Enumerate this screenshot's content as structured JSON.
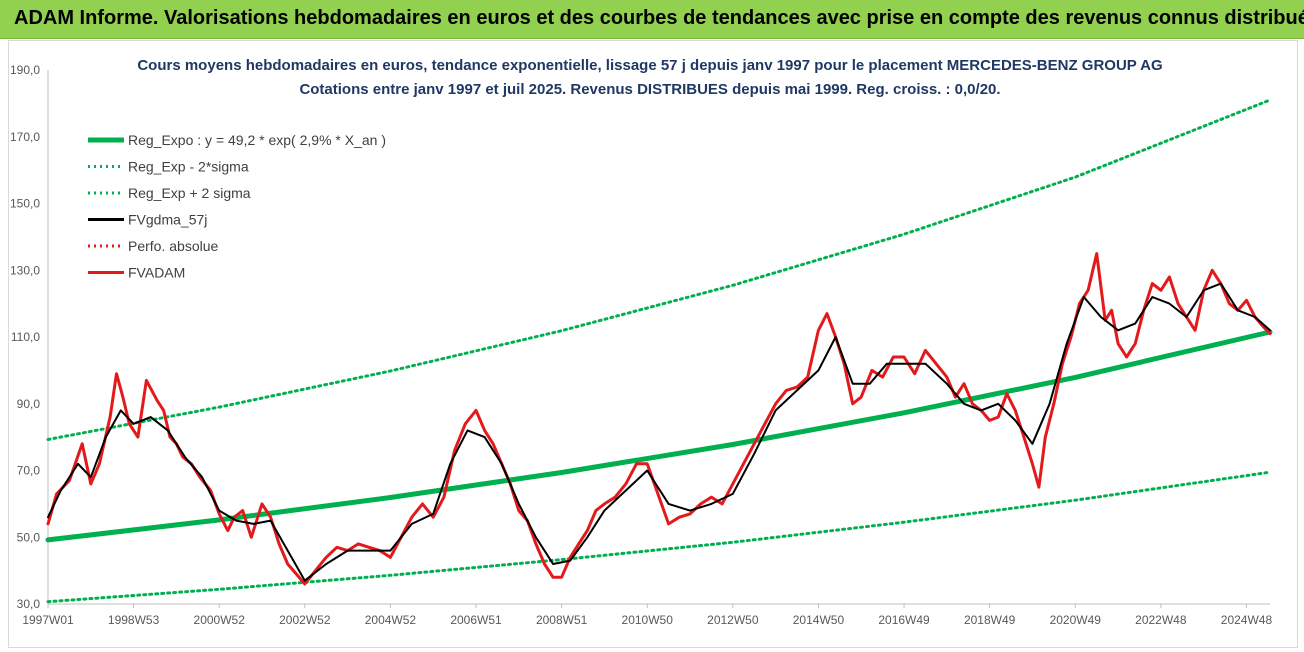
{
  "banner": {
    "title": "ADAM Informe. Valorisations hebdomadaires en euros et des courbes de tendances avec prise en compte des revenus connus distribués"
  },
  "colors": {
    "banner_bg": "#92d050",
    "trend": "#00b050",
    "band": "#00b050",
    "smooth": "#000000",
    "adam": "#e31a1c",
    "perf": "#e31a1c",
    "title_text": "#1f3864"
  },
  "chart_data": {
    "type": "line",
    "title": "Cours moyens hebdomadaires en euros, tendance exponentielle, lissage 57 j depuis janv 1997 pour le placement MERCEDES-BENZ GROUP AG",
    "subtitle": "Cotations entre janv 1997 et juil 2025. Revenus DISTRIBUES depuis mai 1999. Reg. croiss. : 0,0/20.",
    "x_range": [
      1997.0,
      2025.55
    ],
    "ylim": [
      30,
      190
    ],
    "y_ticks": [
      "30,0",
      "50,0",
      "70,0",
      "90,0",
      "110,0",
      "130,0",
      "150,0",
      "170,0",
      "190,0"
    ],
    "x_tick_labels": [
      "1997W01",
      "1998W53",
      "2000W52",
      "2002W52",
      "2004W52",
      "2006W51",
      "2008W51",
      "2010W50",
      "2012W50",
      "2014W50",
      "2016W49",
      "2018W49",
      "2020W49",
      "2022W48",
      "2024W48"
    ],
    "x_tick_years": [
      1997.0,
      1999.0,
      2001.0,
      2003.0,
      2005.0,
      2007.0,
      2009.0,
      2011.0,
      2013.0,
      2015.0,
      2017.0,
      2019.0,
      2021.0,
      2023.0,
      2025.0
    ],
    "grid": false,
    "legend_position": "top-left",
    "legend": [
      {
        "label": "Reg_Expo : y = 49,2 * exp( 2,9% *  X_an )",
        "style": "solid",
        "color": "#00b050"
      },
      {
        "label": "Reg_Exp - 2*sigma",
        "style": "dotted",
        "color": "#00b050"
      },
      {
        "label": "Reg_Exp + 2 sigma",
        "style": "dotted",
        "color": "#00b050"
      },
      {
        "label": "FVgdma_57j",
        "style": "solid",
        "color": "#000000"
      },
      {
        "label": "Perfo. absolue",
        "style": "dotted",
        "color": "#e31a1c"
      },
      {
        "label": "FVADAM",
        "style": "solid",
        "color": "#e31a1c"
      }
    ],
    "series": [
      {
        "name": "Reg_Expo : y = 49,2 * exp( 2,9% *  X_an )",
        "x": [
          1997.0,
          2001.0,
          2005.0,
          2009.0,
          2013.0,
          2017.0,
          2021.0,
          2025.55
        ],
        "values": [
          49.2,
          55.2,
          61.9,
          69.4,
          77.8,
          87.3,
          97.9,
          111.5
        ]
      },
      {
        "name": "Reg_Exp - 2*sigma",
        "x": [
          1997.0,
          2001.0,
          2005.0,
          2009.0,
          2013.0,
          2017.0,
          2021.0,
          2025.55
        ],
        "values": [
          30.7,
          34.4,
          38.6,
          43.3,
          48.5,
          54.5,
          61.1,
          69.5
        ]
      },
      {
        "name": "Reg_Exp + 2 sigma",
        "x": [
          1997.0,
          2001.0,
          2005.0,
          2009.0,
          2013.0,
          2017.0,
          2021.0,
          2025.55
        ],
        "values": [
          79.3,
          89.0,
          99.8,
          111.9,
          125.5,
          140.8,
          157.9,
          181.0
        ]
      },
      {
        "name": "FVADAM",
        "x": [
          1997.0,
          1997.2,
          1997.5,
          1997.8,
          1998.0,
          1998.2,
          1998.45,
          1998.6,
          1998.75,
          1998.9,
          1999.1,
          1999.3,
          1999.55,
          1999.7,
          1999.85,
          2000.0,
          2000.15,
          2000.35,
          2000.55,
          2000.8,
          2001.0,
          2001.2,
          2001.35,
          2001.55,
          2001.75,
          2002.0,
          2002.2,
          2002.4,
          2002.6,
          2002.8,
          2003.0,
          2003.25,
          2003.5,
          2003.75,
          2004.0,
          2004.25,
          2004.5,
          2004.75,
          2005.0,
          2005.25,
          2005.5,
          2005.75,
          2006.0,
          2006.25,
          2006.5,
          2006.75,
          2007.0,
          2007.2,
          2007.4,
          2007.6,
          2007.8,
          2008.0,
          2008.2,
          2008.4,
          2008.6,
          2008.8,
          2009.0,
          2009.2,
          2009.4,
          2009.6,
          2009.8,
          2010.0,
          2010.25,
          2010.5,
          2010.75,
          2011.0,
          2011.25,
          2011.5,
          2011.75,
          2012.0,
          2012.25,
          2012.5,
          2012.75,
          2013.0,
          2013.25,
          2013.5,
          2013.75,
          2014.0,
          2014.25,
          2014.5,
          2014.75,
          2015.0,
          2015.2,
          2015.4,
          2015.6,
          2015.8,
          2016.0,
          2016.25,
          2016.5,
          2016.75,
          2017.0,
          2017.25,
          2017.5,
          2017.75,
          2018.0,
          2018.2,
          2018.4,
          2018.6,
          2018.8,
          2019.0,
          2019.2,
          2019.4,
          2019.6,
          2019.8,
          2020.0,
          2020.15,
          2020.3,
          2020.5,
          2020.7,
          2020.9,
          2021.1,
          2021.3,
          2021.5,
          2021.7,
          2021.85,
          2022.0,
          2022.2,
          2022.4,
          2022.6,
          2022.8,
          2023.0,
          2023.2,
          2023.4,
          2023.6,
          2023.8,
          2024.0,
          2024.2,
          2024.4,
          2024.6,
          2024.8,
          2025.0,
          2025.2,
          2025.4,
          2025.55
        ],
        "values": [
          54,
          63,
          67,
          78,
          66,
          72,
          86,
          99,
          92,
          84,
          80,
          97,
          91,
          88,
          80,
          78,
          74,
          72,
          68,
          64,
          57,
          52,
          56,
          58,
          50,
          60,
          56,
          48,
          42,
          39,
          36,
          40,
          44,
          47,
          46,
          48,
          47,
          46,
          44,
          50,
          56,
          60,
          56,
          62,
          76,
          84,
          88,
          82,
          78,
          72,
          66,
          58,
          55,
          48,
          42,
          38,
          38,
          44,
          48,
          52,
          58,
          60,
          62,
          66,
          72,
          72,
          63,
          54,
          56,
          57,
          60,
          62,
          60,
          66,
          72,
          78,
          84,
          90,
          94,
          95,
          98,
          112,
          117,
          110,
          102,
          90,
          92,
          100,
          98,
          104,
          104,
          99,
          106,
          102,
          98,
          92,
          96,
          90,
          88,
          85,
          86,
          93,
          88,
          80,
          72,
          65,
          80,
          90,
          102,
          110,
          120,
          124,
          135,
          115,
          118,
          108,
          104,
          108,
          118,
          126,
          124,
          128,
          120,
          116,
          112,
          124,
          130,
          126,
          120,
          118,
          121,
          116,
          113,
          111
        ]
      },
      {
        "name": "FVgdma_57j",
        "x": [
          1997.0,
          1997.3,
          1997.7,
          1998.0,
          1998.35,
          1998.7,
          1999.0,
          1999.4,
          1999.8,
          2000.2,
          2000.6,
          2001.0,
          2001.4,
          2001.8,
          2002.2,
          2002.6,
          2003.0,
          2003.5,
          2004.0,
          2004.5,
          2005.0,
          2005.5,
          2006.0,
          2006.4,
          2006.8,
          2007.2,
          2007.6,
          2008.0,
          2008.4,
          2008.8,
          2009.2,
          2009.6,
          2010.0,
          2010.5,
          2011.0,
          2011.5,
          2012.0,
          2012.5,
          2013.0,
          2013.5,
          2014.0,
          2014.5,
          2015.0,
          2015.4,
          2015.8,
          2016.2,
          2016.6,
          2017.0,
          2017.5,
          2018.0,
          2018.4,
          2018.8,
          2019.2,
          2019.6,
          2020.0,
          2020.4,
          2020.8,
          2021.2,
          2021.6,
          2022.0,
          2022.4,
          2022.8,
          2023.2,
          2023.6,
          2024.0,
          2024.4,
          2024.8,
          2025.2,
          2025.55
        ],
        "values": [
          56,
          64,
          72,
          68,
          80,
          88,
          84,
          86,
          82,
          74,
          68,
          58,
          55,
          54,
          55,
          46,
          37,
          42,
          46,
          46,
          46,
          54,
          57,
          72,
          82,
          80,
          72,
          60,
          50,
          42,
          43,
          50,
          58,
          64,
          70,
          60,
          58,
          60,
          63,
          75,
          88,
          94,
          100,
          110,
          96,
          96,
          102,
          102,
          102,
          96,
          90,
          88,
          90,
          85,
          78,
          90,
          108,
          122,
          116,
          112,
          114,
          122,
          120,
          116,
          124,
          126,
          118,
          116,
          112
        ]
      }
    ]
  }
}
